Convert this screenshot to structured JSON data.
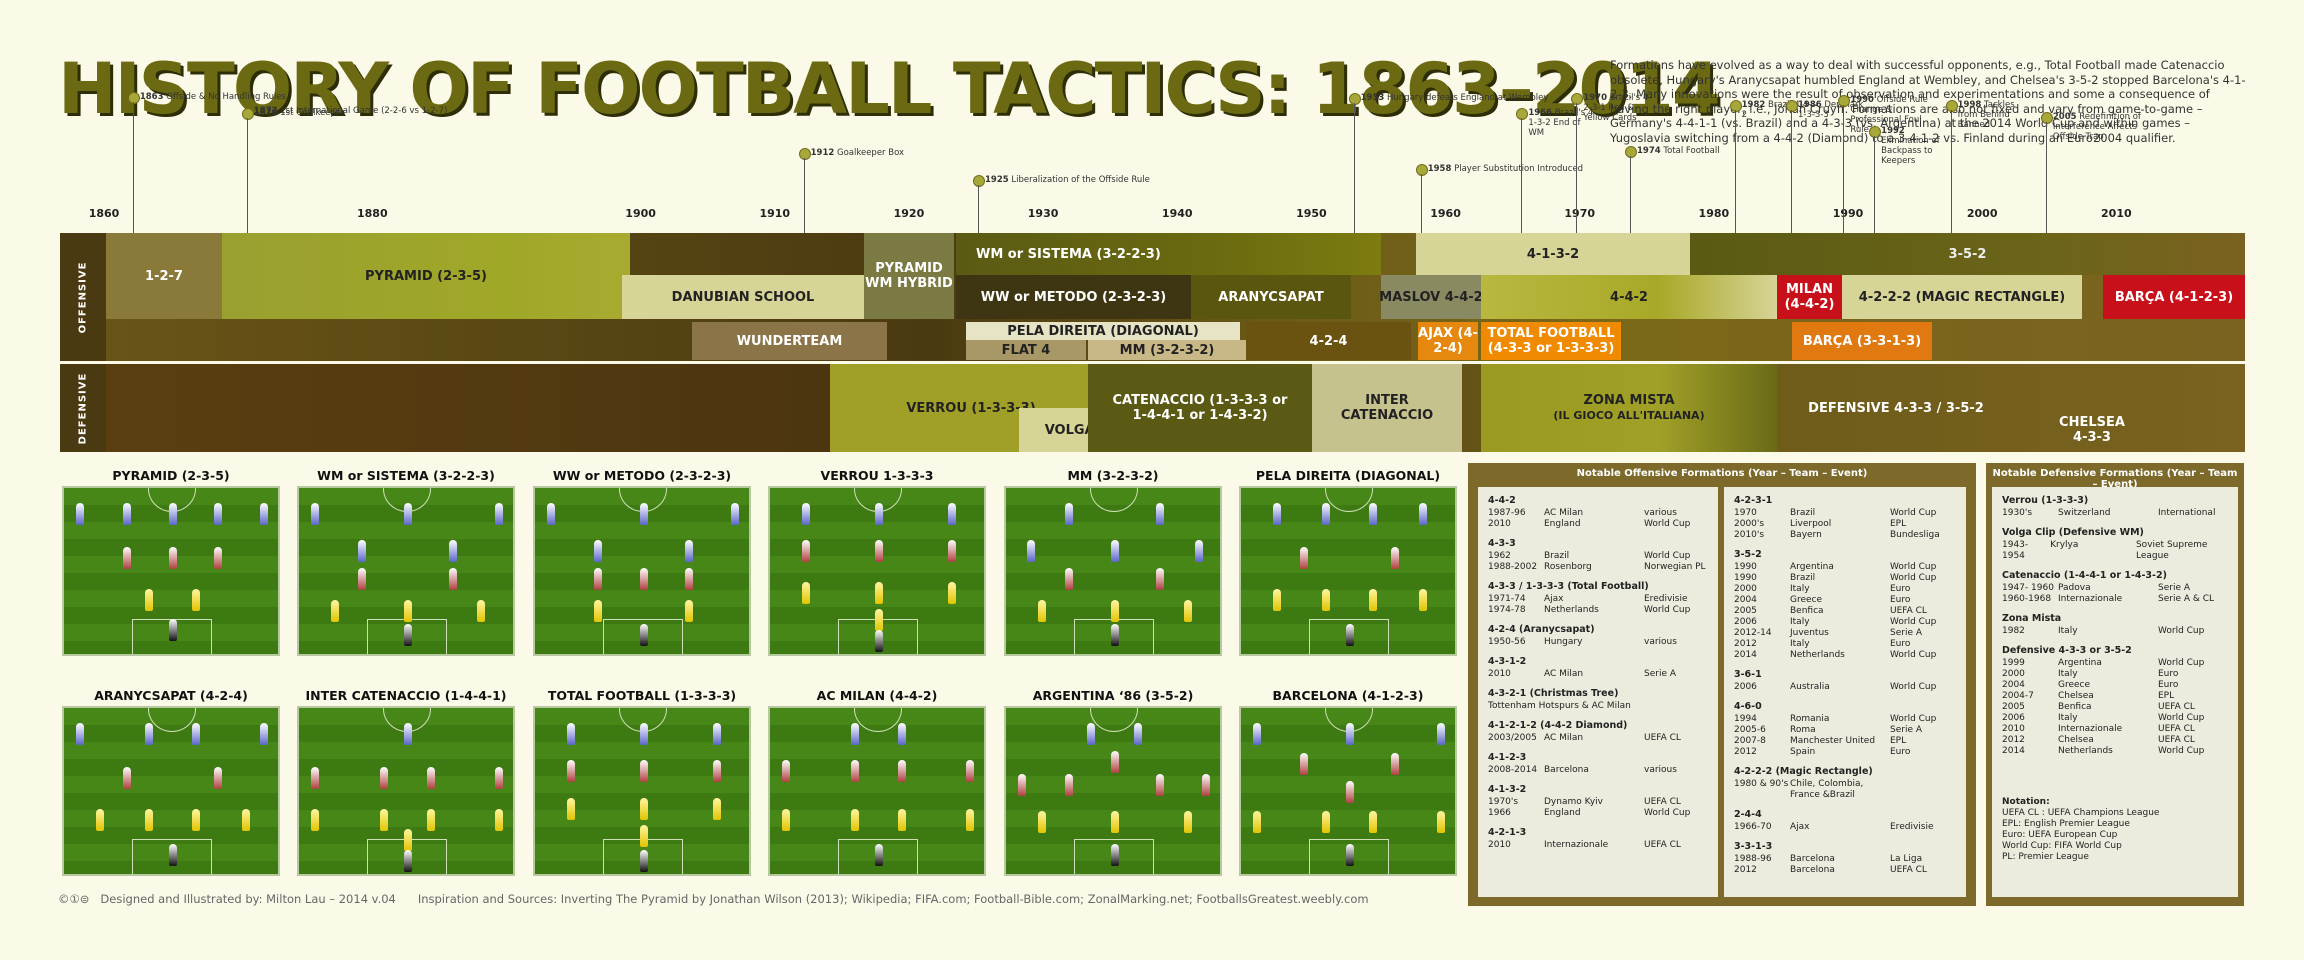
{
  "title": "HISTORY OF FOOTBALL TACTICS: 1863–2014",
  "intro": "Formations have evolved as a way to deal with successful opponents, e.g., Total Football made Catenaccio obsolete, Hungary's Aranycsapat humbled England at Wembley, and Chelsea's 3-5-2 stopped Barcelona's 4-1-2-3. Many innovations were the result of observation and experimentations and some a consequence of having the right player, i.e., Johan Cruyff. Formations are also not fixed and vary from game-to-game – Germany's 4-4-1-1 (vs. Brazil) and a 4-3-3 (vs. Argentina) at the 2014 World Cup and within games – Yugoslavia switching from a 4-4-2 (Diamond) to a 3-4-1-2 vs. Finland during an Euro2004 qualifier.",
  "years": [
    "1860",
    "1880",
    "1900",
    "1910",
    "1920",
    "1930",
    "1940",
    "1950",
    "1960",
    "1970",
    "1980",
    "1990",
    "2000",
    "2010"
  ],
  "events": [
    {
      "year": "1863",
      "text": "Offside & No Handling Rules"
    },
    {
      "year": "1870",
      "text": "1st Goalkeeper"
    },
    {
      "year": "1872",
      "text": "1st International Game (2-2-6 vs 1-2-7)"
    },
    {
      "year": "1912",
      "text": "Goalkeeper Box"
    },
    {
      "year": "1925",
      "text": "Liberalization of the Offside Rule"
    },
    {
      "year": "1953",
      "text": "Hungary defeats England at Wembley"
    },
    {
      "year": "1958",
      "text": "Player Substitution Introduced"
    },
    {
      "year": "1966",
      "text": "Brazil's 4-1-3-2 End of WM"
    },
    {
      "year": "1970",
      "text": "Brazil's 4-2-3-1 Red & Yellow Cards"
    },
    {
      "year": "1974",
      "text": "Total Football"
    },
    {
      "year": "1982",
      "text": "Brazil 4-4-2"
    },
    {
      "year": "1986",
      "text": "Denmark 1-3-3-3"
    },
    {
      "year": "1990",
      "text": "Offside Rule Change & Professional Foul Rule"
    },
    {
      "year": "1992",
      "text": "Elimination of Backpass to Keepers"
    },
    {
      "year": "1998",
      "text": "Tackles from Behind Banned"
    },
    {
      "year": "2005",
      "text": "Redefinition of Interference Affects Offside Trap"
    }
  ],
  "lanes": {
    "offensive": "OFFENSIVE",
    "defensive": "DEFENSIVE"
  },
  "bands": {
    "b127": "1-2-7",
    "pyramid": "PYRAMID (2-3-5)",
    "danubian": "DANUBIAN SCHOOL",
    "pwh": "PYRAMID WM HYBRID",
    "wm": "WM or SISTEMA (3-2-2-3)",
    "ww": "WW or METODO (2-3-2-3)",
    "aranycsapat": "ARANYCSAPAT",
    "maslov": "MASLOV 4-4-2",
    "b4132": "4-1-3-2",
    "b352": "3-5-2",
    "b442": "4-4-2",
    "milan": "MILAN (4-4-2)",
    "magic": "4-2-2-2 (MAGIC RECTANGLE)",
    "barca": "BARÇA (4-1-2-3)",
    "wunderteam": "WUNDERTEAM",
    "pela": "PELA DIREITA (DIAGONAL)",
    "flat4": "FLAT 4",
    "mm": "MM (3-2-3-2)",
    "b424": "4-2-4",
    "ajax": "AJAX (4-2-4)",
    "total": "TOTAL FOOTBALL (4-3-3 or 1-3-3-3)",
    "barca2": "BARÇA (3-3-1-3)",
    "verrou": "VERROU (1-3-3-3)",
    "volga": "VOLGA CLIP",
    "catenaccio": "CATENACCIO (1-3-3-3 or 1-4-4-1 or 1-4-3-2)",
    "intercat": "INTER CATENACCIO",
    "zona": "ZONA MISTA",
    "zona_sub": "(IL GIOCO ALL'ITALIANA)",
    "def433": "DEFENSIVE 4-3-3 / 3-5-2",
    "chelsea": "CHELSEA 4-3-3"
  },
  "formations": [
    "PYRAMID (2-3-5)",
    "WM or SISTEMA (3-2-2-3)",
    "WW or METODO (2-3-2-3)",
    "VERROU 1-3-3-3",
    "MM (3-2-3-2)",
    "PELA DIREITA (DIAGONAL)",
    "ARANYCSAPAT (4-2-4)",
    "INTER CATENACCIO (1-4-4-1)",
    "TOTAL FOOTBALL  (1-3-3-3)",
    "AC MILAN (4-4-2)",
    "ARGENTINA ‘86 (3-5-2)",
    "BARCELONA (4-1-2-3)"
  ],
  "offensive_table": {
    "header": "Notable Offensive Formations (Year – Team – Event)",
    "col1": [
      {
        "name": "4-4-2",
        "rows": [
          [
            "1987-96",
            "AC Milan",
            "various"
          ],
          [
            "2010",
            "England",
            "World Cup"
          ]
        ]
      },
      {
        "name": "4-3-3",
        "rows": [
          [
            "1962",
            "Brazil",
            "World Cup"
          ],
          [
            "1988-2002",
            "Rosenborg",
            "Norwegian PL"
          ]
        ]
      },
      {
        "name": "4-3-3 / 1-3-3-3 (Total Football)",
        "rows": [
          [
            "1971-74",
            "Ajax",
            "Eredivisie"
          ],
          [
            "1974-78",
            "Netherlands",
            "World Cup"
          ]
        ]
      },
      {
        "name": "4-2-4 (Aranycsapat)",
        "rows": [
          [
            "1950-56",
            "Hungary",
            "various"
          ]
        ]
      },
      {
        "name": "4-3-1-2",
        "rows": [
          [
            "2010",
            "AC Milan",
            "Serie A"
          ]
        ]
      },
      {
        "name": "4-3-2-1 (Christmas Tree)",
        "rows": [
          [
            "Tottenham Hotspurs & AC Milan",
            "",
            ""
          ]
        ]
      },
      {
        "name": "4-1-2-1-2 (4-4-2 Diamond)",
        "rows": [
          [
            "2003/2005",
            "AC Milan",
            "UEFA CL"
          ]
        ]
      },
      {
        "name": "4-1-2-3",
        "rows": [
          [
            "2008-2014",
            "Barcelona",
            "various"
          ]
        ]
      },
      {
        "name": "4-1-3-2",
        "rows": [
          [
            "1970's",
            "Dynamo Kyiv",
            "UEFA CL"
          ],
          [
            "1966",
            "England",
            "World Cup"
          ]
        ]
      },
      {
        "name": "4-2-1-3",
        "rows": [
          [
            "2010",
            "Internazionale",
            "UEFA CL"
          ]
        ]
      }
    ],
    "col2": [
      {
        "name": "4-2-3-1",
        "rows": [
          [
            "1970",
            "Brazil",
            "World Cup"
          ],
          [
            "2000's",
            "Liverpool",
            "EPL"
          ],
          [
            "2010's",
            "Bayern",
            "Bundesliga"
          ]
        ]
      },
      {
        "name": "3-5-2",
        "rows": [
          [
            "1990",
            "Argentina",
            "World Cup"
          ],
          [
            "1990",
            "Brazil",
            "World Cup"
          ],
          [
            "2000",
            "Italy",
            "Euro"
          ],
          [
            "2004",
            "Greece",
            "Euro"
          ],
          [
            "2005",
            "Benfica",
            "UEFA CL"
          ],
          [
            "2006",
            "Italy",
            "World Cup"
          ],
          [
            "2012-14",
            "Juventus",
            "Serie A"
          ],
          [
            "2012",
            "Italy",
            "Euro"
          ],
          [
            "2014",
            "Netherlands",
            "World Cup"
          ]
        ]
      },
      {
        "name": "3-6-1",
        "rows": [
          [
            "2006",
            "Australia",
            "World Cup"
          ]
        ]
      },
      {
        "name": "4-6-0",
        "rows": [
          [
            "1994",
            "Romania",
            "World Cup"
          ],
          [
            "2005-6",
            "Roma",
            "Serie A"
          ],
          [
            "2007-8",
            "Manchester United",
            "EPL"
          ],
          [
            "2012",
            "Spain",
            "Euro"
          ]
        ]
      },
      {
        "name": "4-2-2-2 (Magic Rectangle)",
        "rows": [
          [
            "1980 & 90's",
            "Chile, Colombia, France &Brazil",
            ""
          ]
        ]
      },
      {
        "name": "2-4-4",
        "rows": [
          [
            "1966-70",
            "Ajax",
            "Eredivisie"
          ]
        ]
      },
      {
        "name": "3-3-1-3",
        "rows": [
          [
            "1988-96",
            "Barcelona",
            "La Liga"
          ],
          [
            "2012",
            "Barcelona",
            "UEFA CL"
          ]
        ]
      }
    ]
  },
  "defensive_table": {
    "header": "Notable Defensive Formations (Year – Team – Event)",
    "groups": [
      {
        "name": "Verrou (1-3-3-3)",
        "rows": [
          [
            "1930's",
            "Switzerland",
            "International"
          ]
        ]
      },
      {
        "name": "Volga Clip (Defensive WM)",
        "rows": [
          [
            "1943-1954",
            "Krylya",
            "Soviet Supreme League"
          ]
        ]
      },
      {
        "name": "Catenaccio (1-4-4-1 or 1-4-3-2)",
        "rows": [
          [
            "1947- 1960",
            "Padova",
            "Serie A"
          ],
          [
            "1960-1968",
            "Internazionale",
            "Serie A & CL"
          ]
        ]
      },
      {
        "name": "Zona Mista",
        "rows": [
          [
            "1982",
            "Italy",
            "World Cup"
          ]
        ]
      },
      {
        "name": "Defensive 4-3-3 or 3-5-2",
        "rows": [
          [
            "1999",
            "Argentina",
            "World Cup"
          ],
          [
            "2000",
            "Italy",
            "Euro"
          ],
          [
            "2004",
            "Greece",
            "Euro"
          ],
          [
            "2004-7",
            "Chelsea",
            "EPL"
          ],
          [
            "2005",
            "Benfica",
            "UEFA CL"
          ],
          [
            "2006",
            "Italy",
            "World Cup"
          ],
          [
            "2010",
            "Internazionale",
            "UEFA CL"
          ],
          [
            "2012",
            "Chelsea",
            "UEFA CL"
          ],
          [
            "2014",
            "Netherlands",
            "World Cup"
          ]
        ]
      }
    ],
    "notation_title": "Notation:",
    "notation": [
      "UEFA CL : UEFA Champions League",
      "EPL: English Premier League",
      "Euro: UEFA European Cup",
      "World Cup: FIFA World Cup",
      "PL: Premier League"
    ]
  },
  "credits": {
    "icons": "©①⊜",
    "designer": "Designed and Illustrated by: Milton Lau – 2014 v.04",
    "sources": "Inspiration and Sources: Inverting The Pyramid by Jonathan Wilson (2013); Wikipedia; FIFA.com; Football-Bible.com; ZonalMarking.net; FootballsGreatest.weebly.com"
  },
  "colors": {
    "title": "#6b6a12",
    "olive": "#a0a028",
    "cream": "#d6d496",
    "dark": "#4a3a10",
    "orange": "#f08a00",
    "red": "#c8101a",
    "panel": "#7d6a2b"
  }
}
